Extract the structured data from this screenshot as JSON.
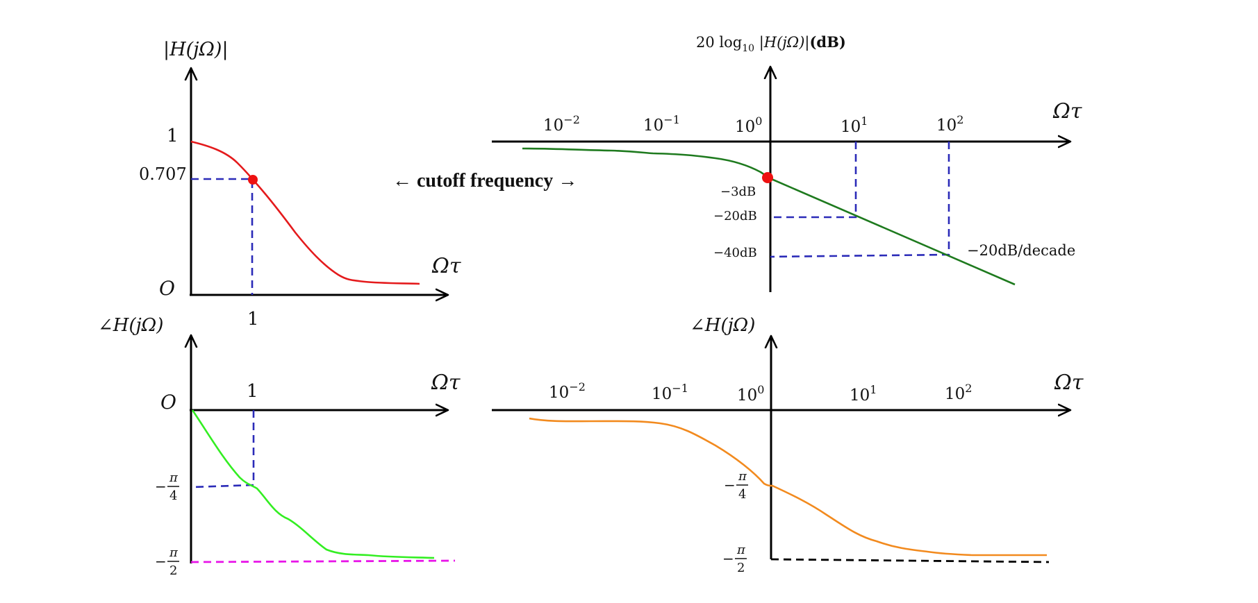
{
  "colors": {
    "axis": "#000000",
    "magnitude_curve": "#e41a1c",
    "db_curve": "#1e7a1e",
    "phase_curve": "#33ee22",
    "bode_phase_curve": "#f28a1e",
    "guide_dashed": "#2b2bb8",
    "asymptote_magenta": "#e815e8",
    "asymptote_black": "#000000",
    "cutoff_marker": "#ee1111"
  },
  "cutoff_label": "← cutoff frequency →",
  "panels": {
    "magnitude": {
      "y_label": "|H(jΩ)|",
      "x_label": "Ωτ",
      "origin": "O",
      "y_ticks": [
        "1",
        "0.707"
      ],
      "x_ticks": [
        "1"
      ]
    },
    "magnitude_db": {
      "y_label_prefix": "20 log",
      "y_label_sub": "10",
      "y_label_mid": " |H(jΩ)|",
      "y_label_unit": "(dB)",
      "x_label": "Ωτ",
      "decades": [
        {
          "base": "10",
          "exp": "−2"
        },
        {
          "base": "10",
          "exp": "−1"
        },
        {
          "base": "10",
          "exp": "0"
        },
        {
          "base": "10",
          "exp": "1"
        },
        {
          "base": "10",
          "exp": "2"
        }
      ],
      "db_ticks": [
        "−3dB",
        "−20dB",
        "−40dB"
      ],
      "slope_label": "−20dB/decade"
    },
    "phase": {
      "y_label": "∠H(jΩ)",
      "x_label": "Ωτ",
      "origin": "O",
      "x_ticks": [
        "1"
      ],
      "y_ticks": [
        {
          "sign": "−",
          "num": "π",
          "den": "4"
        },
        {
          "sign": "−",
          "num": "π",
          "den": "2"
        }
      ]
    },
    "phase_bode": {
      "y_label": "∠H(jΩ)",
      "x_label": "Ωτ",
      "decades": [
        {
          "base": "10",
          "exp": "−2"
        },
        {
          "base": "10",
          "exp": "−1"
        },
        {
          "base": "10",
          "exp": "0"
        },
        {
          "base": "10",
          "exp": "1"
        },
        {
          "base": "10",
          "exp": "2"
        }
      ],
      "y_ticks": [
        {
          "sign": "−",
          "num": "π",
          "den": "4"
        },
        {
          "sign": "−",
          "num": "π",
          "den": "2"
        }
      ]
    }
  }
}
